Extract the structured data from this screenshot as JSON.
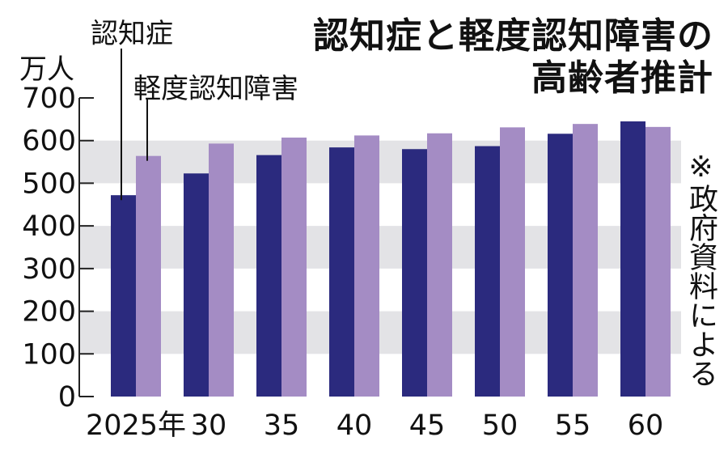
{
  "chart_data": {
    "type": "bar",
    "title": "認知症と軽度認知障害の高齢者推計",
    "title_lines": [
      "認知症と軽度認知障害の",
      "高齢者推計"
    ],
    "y_unit": "万人",
    "categories": [
      "2025年",
      "30",
      "35",
      "40",
      "45",
      "50",
      "55",
      "60"
    ],
    "series": [
      {
        "name": "認知症",
        "color": "#2b2a7e",
        "values": [
          472,
          523,
          566,
          584,
          580,
          587,
          616,
          645
        ]
      },
      {
        "name": "軽度認知障害",
        "color": "#a48cc4",
        "values": [
          564,
          593,
          607,
          612,
          617,
          631,
          639,
          632
        ]
      }
    ],
    "ylim": [
      0,
      700
    ],
    "yticks": [
      0,
      100,
      200,
      300,
      400,
      500,
      600,
      700
    ],
    "band_color": "#e3e3e6",
    "source": "※政府資料による"
  }
}
